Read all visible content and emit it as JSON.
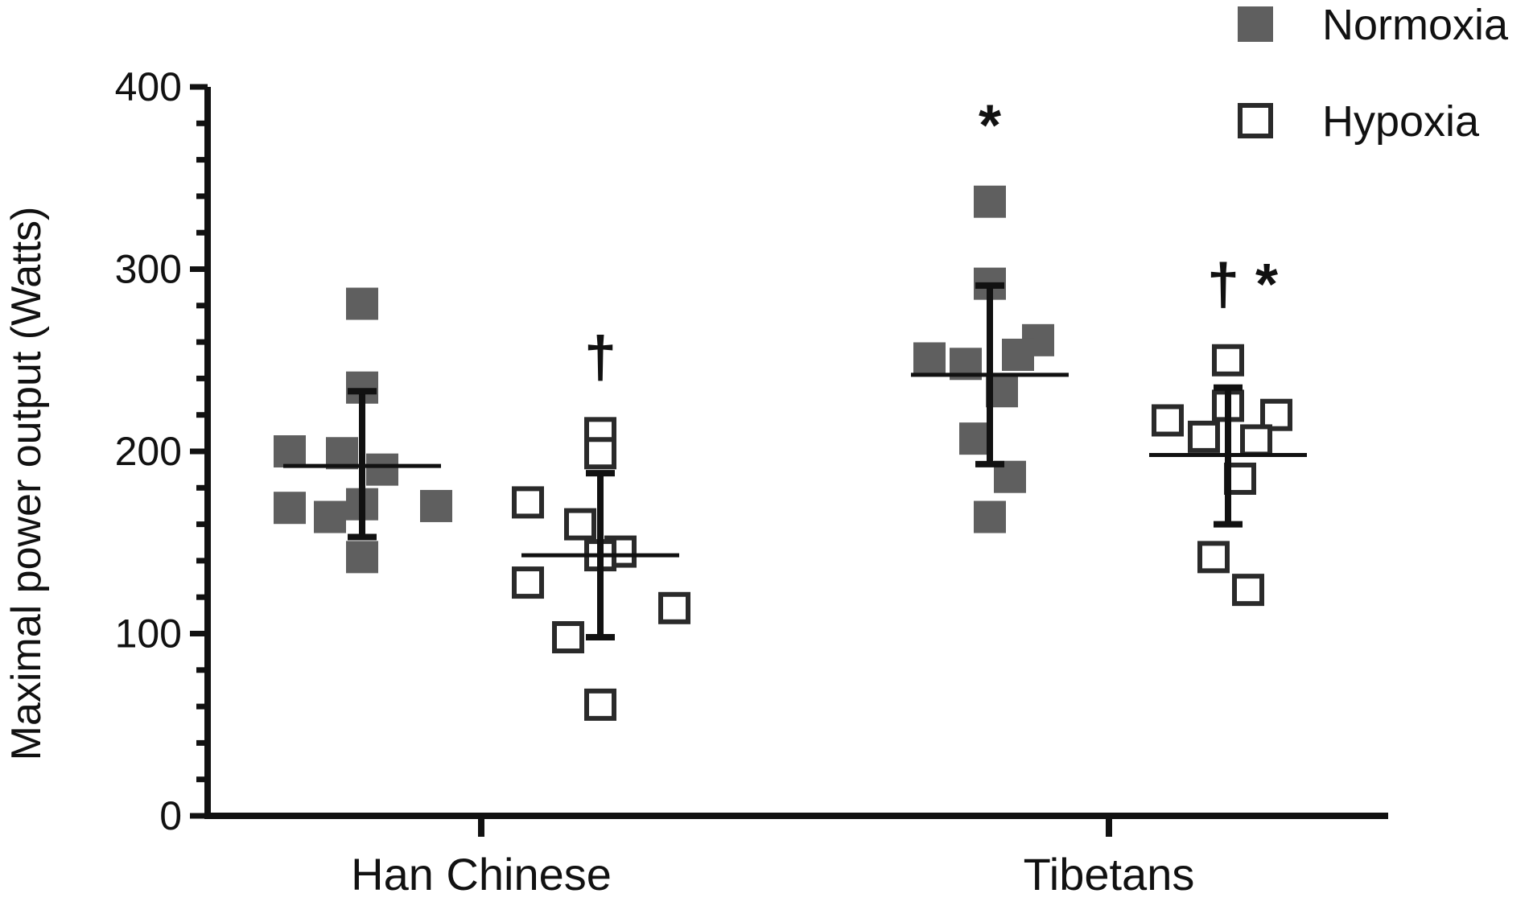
{
  "chart_data": {
    "type": "scatter",
    "ylabel": "Maximal power output (Watts)",
    "ylim": [
      0,
      400
    ],
    "yticks": [
      0,
      100,
      200,
      300,
      400
    ],
    "categories": [
      "Han Chinese",
      "Tibetans"
    ],
    "legend": {
      "position": "top-right"
    },
    "series": [
      {
        "name": "Normoxia",
        "color": "#5f5f5f",
        "marker": "filled-square",
        "groups": [
          {
            "category": "Han Chinese",
            "values": [
              281,
              235,
              200,
              199,
              190,
              171,
              169,
              170,
              164,
              142
            ],
            "mean": 192,
            "sd_low": 153,
            "sd_high": 233,
            "annotation": ""
          },
          {
            "category": "Tibetans",
            "values": [
              337,
              292,
              261,
              251,
              248,
              253,
              233,
              207,
              186,
              164
            ],
            "mean": 242,
            "sd_low": 193,
            "sd_high": 291,
            "annotation": "*"
          }
        ]
      },
      {
        "name": "Hypoxia",
        "color": "#2a2a2a",
        "marker": "open-square",
        "groups": [
          {
            "category": "Han Chinese",
            "values": [
              210,
              199,
              172,
              160,
              145,
              143,
              128,
              114,
              98,
              61
            ],
            "mean": 143,
            "sd_low": 98,
            "sd_high": 188,
            "annotation": "†"
          },
          {
            "category": "Tibetans",
            "values": [
              250,
              225,
              220,
              217,
              208,
              206,
              185,
              142,
              124
            ],
            "mean": 198,
            "sd_low": 160,
            "sd_high": 235,
            "annotation": "† *"
          }
        ]
      }
    ]
  }
}
